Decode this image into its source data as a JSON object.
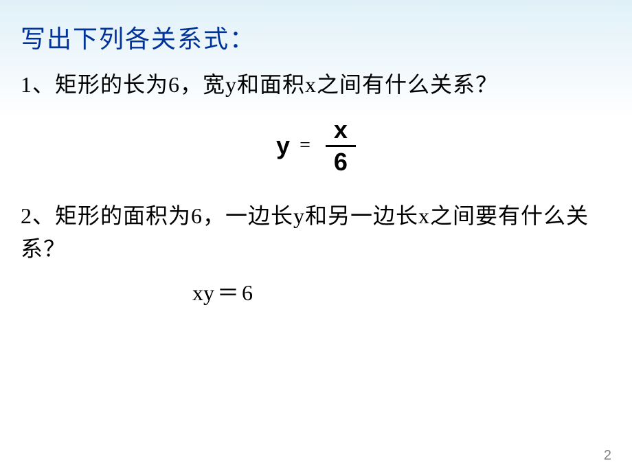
{
  "title": "写出下列各关系式：",
  "q1": "1、矩形的长为6，宽y和面积x之间有什么关系？",
  "formula1": {
    "lhs": "y",
    "eq": "=",
    "numerator": "x",
    "denominator": "6"
  },
  "q2": "2、矩形的面积为6，一边长y和另一边长x之间要有什么关系？",
  "formula2": {
    "lhs": "xy",
    "eq": "＝",
    "rhs": "6"
  },
  "pageNumber": "2",
  "colors": {
    "title_color": "#003399",
    "text_color": "#000000",
    "bg_top": "#e0f0f8",
    "bg_bottom": "#ffffff",
    "pagenum_color": "#808080"
  },
  "fonts": {
    "title_size": 36,
    "body_size": 32,
    "formula1_size": 36,
    "pagenum_size": 20
  }
}
